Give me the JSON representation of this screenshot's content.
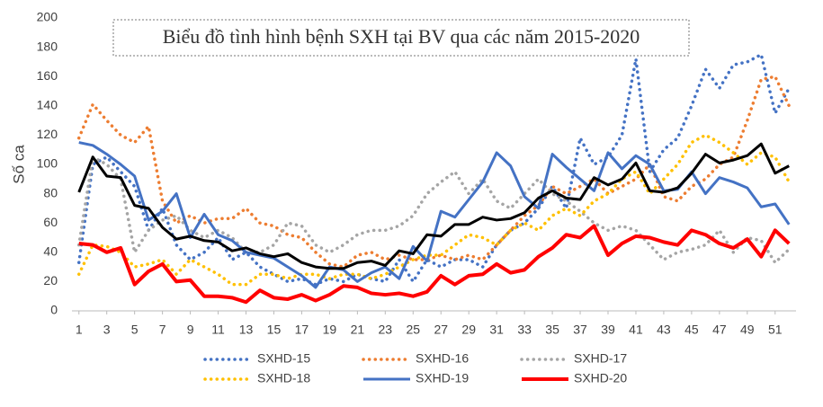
{
  "chart_data": {
    "type": "line",
    "title": "Biểu đồ tình hình bệnh SXH tại BV qua các năm 2015-2020",
    "y_label": "Số ca",
    "x": [
      1,
      2,
      3,
      4,
      5,
      6,
      7,
      8,
      9,
      10,
      11,
      12,
      13,
      14,
      15,
      16,
      17,
      18,
      19,
      20,
      21,
      22,
      23,
      24,
      25,
      26,
      27,
      28,
      29,
      30,
      31,
      32,
      33,
      34,
      35,
      36,
      37,
      38,
      39,
      40,
      41,
      42,
      43,
      44,
      45,
      46,
      47,
      48,
      49,
      50,
      51,
      52
    ],
    "xlim": [
      0.5,
      52.5
    ],
    "xticks": [
      1,
      3,
      5,
      7,
      9,
      11,
      13,
      15,
      17,
      19,
      21,
      23,
      25,
      27,
      29,
      31,
      33,
      35,
      37,
      39,
      41,
      43,
      45,
      47,
      49,
      51
    ],
    "ylim": [
      0,
      200
    ],
    "yticks": [
      0,
      20,
      40,
      60,
      80,
      100,
      120,
      140,
      160,
      180,
      200
    ],
    "grid": false,
    "legend": "bottom",
    "series": [
      {
        "name": "SXHD-15",
        "color": "#4472c4",
        "style": "dotted",
        "values": [
          33,
          100,
          105,
          95,
          85,
          55,
          70,
          45,
          35,
          40,
          50,
          35,
          40,
          30,
          25,
          20,
          22,
          18,
          22,
          20,
          25,
          22,
          20,
          35,
          20,
          35,
          30,
          35,
          35,
          30,
          45,
          55,
          60,
          70,
          85,
          70,
          118,
          100,
          105,
          120,
          172,
          95,
          110,
          118,
          140,
          165,
          152,
          168,
          170,
          175,
          135,
          152
        ]
      },
      {
        "name": "SXHD-16",
        "color": "#ed7d31",
        "style": "dotted",
        "values": [
          118,
          141,
          130,
          120,
          115,
          126,
          75,
          60,
          65,
          60,
          63,
          63,
          70,
          60,
          58,
          52,
          50,
          40,
          32,
          30,
          38,
          40,
          35,
          38,
          35,
          35,
          38,
          35,
          38,
          35,
          45,
          55,
          65,
          72,
          85,
          80,
          85,
          90,
          80,
          85,
          90,
          100,
          78,
          75,
          85,
          90,
          100,
          105,
          130,
          158,
          160,
          140
        ]
      },
      {
        "name": "SXHD-17",
        "color": "#a5a5a5",
        "style": "dotted",
        "values": [
          45,
          105,
          100,
          90,
          40,
          55,
          62,
          65,
          55,
          50,
          55,
          50,
          40,
          40,
          45,
          60,
          58,
          45,
          40,
          45,
          52,
          55,
          55,
          58,
          65,
          80,
          88,
          95,
          80,
          90,
          75,
          70,
          80,
          90,
          80,
          75,
          68,
          60,
          55,
          58,
          55,
          45,
          35,
          40,
          42,
          45,
          55,
          40,
          50,
          48,
          33,
          42
        ]
      },
      {
        "name": "SXHD-18",
        "color": "#ffc000",
        "style": "dotted",
        "values": [
          25,
          45,
          44,
          40,
          30,
          32,
          35,
          25,
          35,
          30,
          25,
          18,
          18,
          25,
          25,
          22,
          25,
          25,
          22,
          25,
          25,
          22,
          25,
          30,
          35,
          38,
          38,
          45,
          52,
          50,
          45,
          55,
          60,
          55,
          65,
          70,
          65,
          75,
          80,
          90,
          95,
          80,
          90,
          100,
          115,
          120,
          115,
          108,
          100,
          108,
          105,
          88
        ]
      },
      {
        "name": "SXHD-19",
        "color": "#4472c4",
        "style": "solid",
        "values": [
          115,
          113,
          107,
          100,
          92,
          62,
          68,
          80,
          50,
          66,
          52,
          48,
          40,
          38,
          36,
          30,
          24,
          16,
          30,
          28,
          20,
          26,
          30,
          22,
          44,
          34,
          68,
          64,
          76,
          88,
          108,
          99,
          78,
          70,
          107,
          98,
          90,
          82,
          108,
          97,
          106,
          100,
          82,
          83,
          95,
          80,
          91,
          88,
          84,
          71,
          73,
          59
        ]
      },
      {
        "name": "SXHD-20",
        "color": "#ff0000",
        "style": "thick",
        "values": [
          46,
          45,
          40,
          43,
          18,
          27,
          32,
          20,
          21,
          10,
          10,
          9,
          6,
          14,
          9,
          8,
          11,
          7,
          11,
          17,
          16,
          12,
          11,
          12,
          10,
          13,
          24,
          18,
          24,
          25,
          32,
          26,
          28,
          37,
          43,
          52,
          50,
          58,
          38,
          46,
          51,
          50,
          47,
          45,
          55,
          52,
          46,
          43,
          49,
          37,
          55,
          46
        ]
      },
      {
        "color": "#000000",
        "style": "solid",
        "values": [
          81,
          105,
          92,
          91,
          72,
          70,
          57,
          49,
          51,
          48,
          47,
          41,
          43,
          39,
          37,
          39,
          33,
          30,
          29,
          29,
          33,
          34,
          31,
          41,
          39,
          52,
          51,
          59,
          59,
          64,
          62,
          63,
          67,
          77,
          82,
          77,
          76,
          91,
          86,
          90,
          101,
          82,
          81,
          84,
          94,
          107,
          101,
          103,
          106,
          114,
          94,
          99
        ]
      }
    ]
  }
}
